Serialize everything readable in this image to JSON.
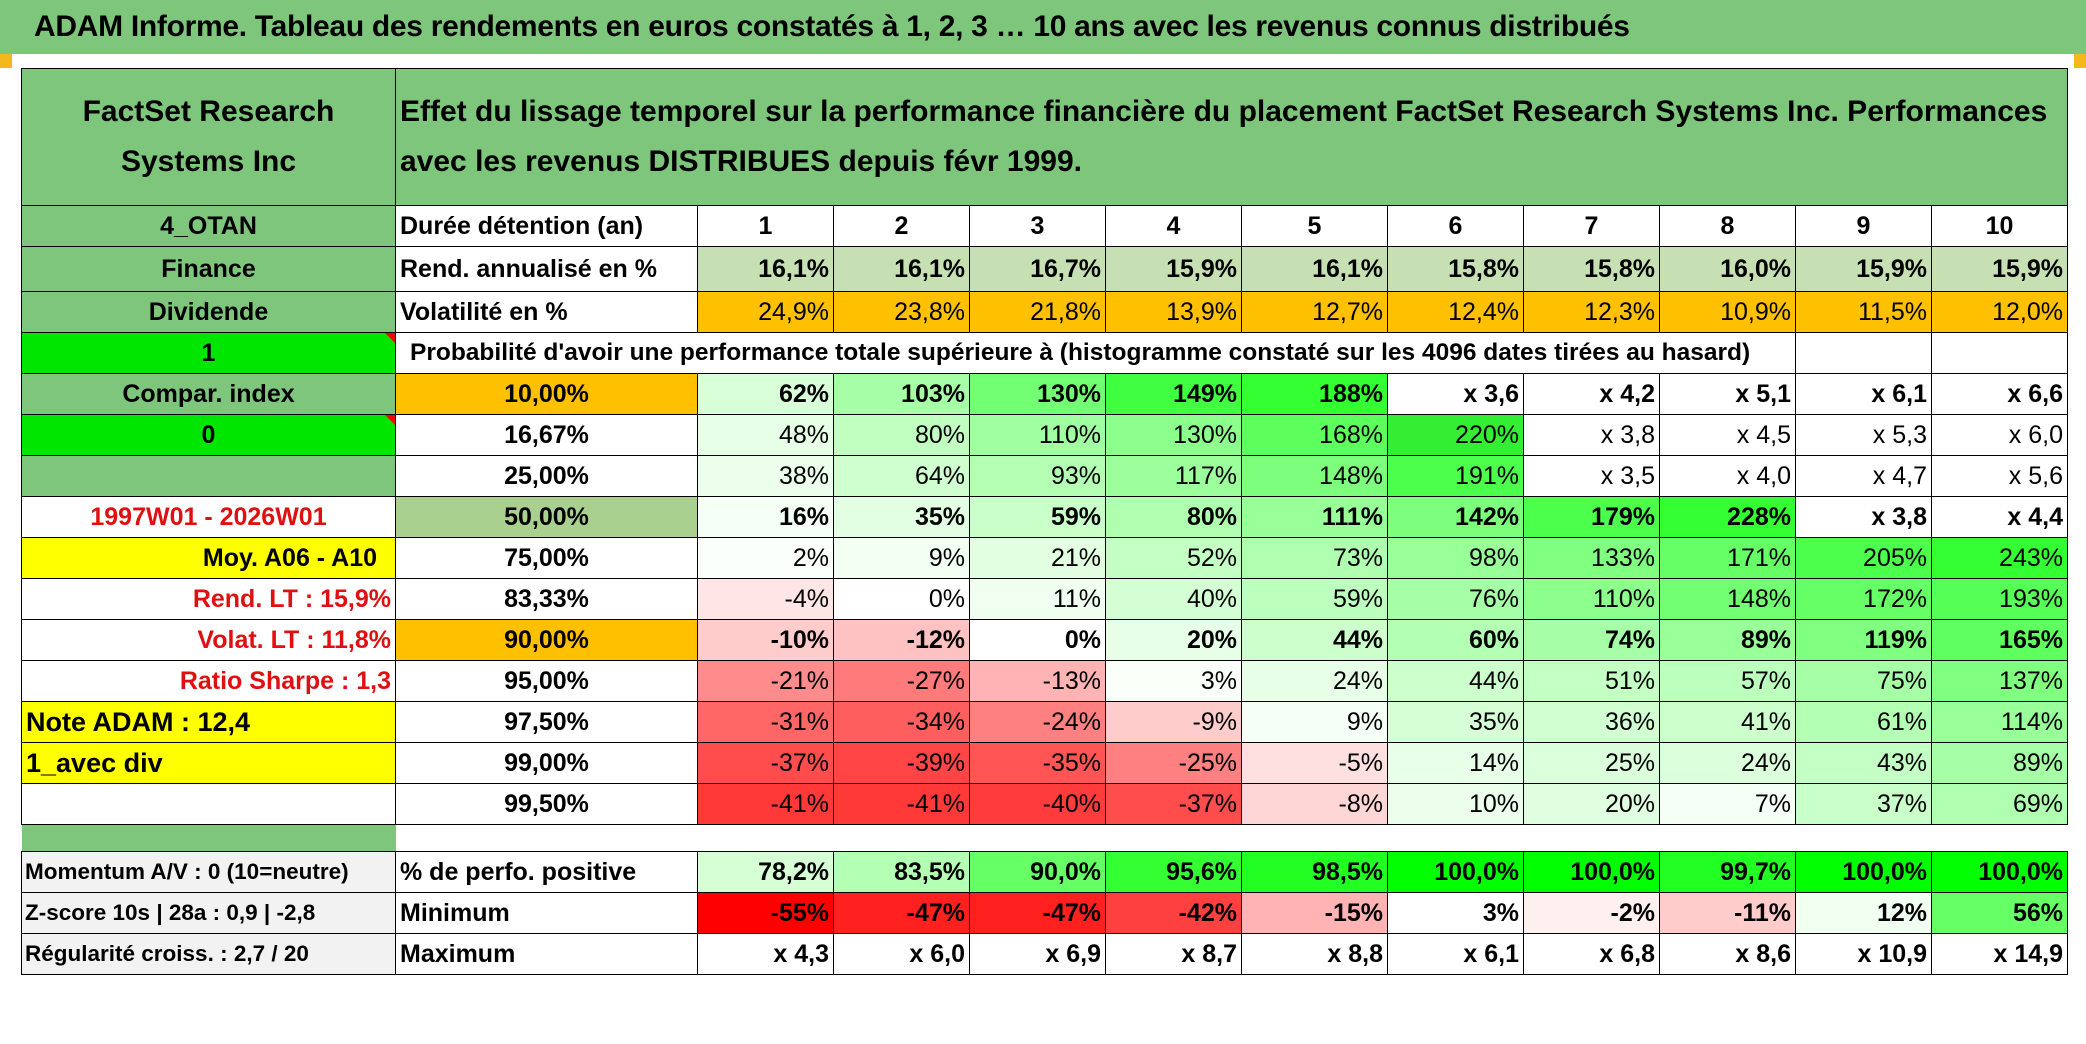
{
  "title": "ADAM Informe. Tableau des rendements en euros constatés à 1, 2, 3 … 10 ans avec les revenus connus distribués",
  "company": "FactSet Research Systems Inc",
  "header_desc": "Effet du lissage temporel sur la performance financière du placement FactSet Research Systems Inc. Performances avec les revenus DISTRIBUES depuis févr 1999.",
  "side": {
    "code": "4_OTAN",
    "sector": "Finance",
    "dividend": "Dividende",
    "one": "1",
    "compar": "Compar. index",
    "zero": "0",
    "period": "1997W01 - 2026W01",
    "moy": "Moy. A06 - A10",
    "rend_lt": "Rend. LT :    15,9%",
    "volat_lt": "Volat. LT :    11,8%",
    "sharpe": "Ratio Sharpe :    1,3",
    "note": "Note ADAM : 12,4",
    "avec_div": "1_avec div",
    "momentum": "Momentum A/V : 0 (10=neutre)",
    "zscore": "Z-score 10s | 28a : 0,9 | -2,8",
    "regularite": "Régularité croiss. : 2,7 / 20"
  },
  "duree_label": "Durée détention (an)",
  "years": [
    "1",
    "2",
    "3",
    "4",
    "5",
    "6",
    "7",
    "8",
    "9",
    "10"
  ],
  "rend_label": "Rend. annualisé en %",
  "rend": [
    "16,1%",
    "16,1%",
    "16,7%",
    "15,9%",
    "16,1%",
    "15,8%",
    "15,8%",
    "16,0%",
    "15,9%",
    "15,9%"
  ],
  "vol_label": "Volatilité en %",
  "vol": [
    "24,9%",
    "23,8%",
    "21,8%",
    "13,9%",
    "12,7%",
    "12,4%",
    "12,3%",
    "10,9%",
    "11,5%",
    "12,0%"
  ],
  "proba_label": "Probabilité d'avoir une performance totale supérieure à (histogramme constaté sur les 4096 dates tirées au hasard)",
  "prob_rows": [
    {
      "p": "10,00%",
      "v": [
        "62%",
        "103%",
        "130%",
        "149%",
        "188%",
        "x 3,6",
        "x 4,2",
        "x 5,1",
        "x 6,1",
        "x 6,6"
      ]
    },
    {
      "p": "16,67%",
      "v": [
        "48%",
        "80%",
        "110%",
        "130%",
        "168%",
        "220%",
        "x 3,8",
        "x 4,5",
        "x 5,3",
        "x 6,0"
      ]
    },
    {
      "p": "25,00%",
      "v": [
        "38%",
        "64%",
        "93%",
        "117%",
        "148%",
        "191%",
        "x 3,5",
        "x 4,0",
        "x 4,7",
        "x 5,6"
      ]
    },
    {
      "p": "50,00%",
      "v": [
        "16%",
        "35%",
        "59%",
        "80%",
        "111%",
        "142%",
        "179%",
        "228%",
        "x 3,8",
        "x 4,4"
      ]
    },
    {
      "p": "75,00%",
      "v": [
        "2%",
        "9%",
        "21%",
        "52%",
        "73%",
        "98%",
        "133%",
        "171%",
        "205%",
        "243%"
      ]
    },
    {
      "p": "83,33%",
      "v": [
        "-4%",
        "0%",
        "11%",
        "40%",
        "59%",
        "76%",
        "110%",
        "148%",
        "172%",
        "193%"
      ]
    },
    {
      "p": "90,00%",
      "v": [
        "-10%",
        "-12%",
        "0%",
        "20%",
        "44%",
        "60%",
        "74%",
        "89%",
        "119%",
        "165%"
      ]
    },
    {
      "p": "95,00%",
      "v": [
        "-21%",
        "-27%",
        "-13%",
        "3%",
        "24%",
        "44%",
        "51%",
        "57%",
        "75%",
        "137%"
      ]
    },
    {
      "p": "97,50%",
      "v": [
        "-31%",
        "-34%",
        "-24%",
        "-9%",
        "9%",
        "35%",
        "36%",
        "41%",
        "61%",
        "114%"
      ]
    },
    {
      "p": "99,00%",
      "v": [
        "-37%",
        "-39%",
        "-35%",
        "-25%",
        "-5%",
        "14%",
        "25%",
        "24%",
        "43%",
        "89%"
      ]
    },
    {
      "p": "99,50%",
      "v": [
        "-41%",
        "-41%",
        "-40%",
        "-37%",
        "-8%",
        "10%",
        "20%",
        "7%",
        "37%",
        "69%"
      ]
    }
  ],
  "pos_label": "% de perfo. positive",
  "pos": [
    "78,2%",
    "83,5%",
    "90,0%",
    "95,6%",
    "98,5%",
    "100,0%",
    "100,0%",
    "99,7%",
    "100,0%",
    "100,0%"
  ],
  "min_label": "Minimum",
  "min": [
    "-55%",
    "-47%",
    "-47%",
    "-42%",
    "-15%",
    "3%",
    "-2%",
    "-11%",
    "12%",
    "56%"
  ],
  "max_label": "Maximum",
  "max": [
    "x 4,3",
    "x 6,0",
    "x 6,9",
    "x 8,7",
    "x 8,8",
    "x 6,1",
    "x 6,8",
    "x 8,6",
    "x 10,9",
    "x 14,9"
  ],
  "colors": {
    "header_green": "#7dc67c",
    "bright_green": "#00e600",
    "orange": "#ffc000",
    "yellow": "#ffff00",
    "red_text": "#e01010",
    "rend_bg": "#c6e0b4",
    "p50_bg": "#a9d08e",
    "side_grey": "#f2f2f2",
    "row_cells": [
      [
        "#d9ffd9",
        "#a6ffa6",
        "#73ff73",
        "#40ff40",
        "#33ff33",
        "#ffffff",
        "#ffffff",
        "#ffffff",
        "#ffffff",
        "#ffffff"
      ],
      [
        "#e6ffe6",
        "#c0ffc0",
        "#a0ffa0",
        "#8cff8c",
        "#5dff5d",
        "#33ee33",
        "#ffffff",
        "#ffffff",
        "#ffffff",
        "#ffffff"
      ],
      [
        "#ecffec",
        "#cfffcf",
        "#b4ffb4",
        "#9cff9c",
        "#7dff7d",
        "#4dff4d",
        "#ffffff",
        "#ffffff",
        "#ffffff",
        "#ffffff"
      ],
      [
        "#f5fff5",
        "#e3ffe3",
        "#c9ffc9",
        "#b0ffb0",
        "#99ff99",
        "#7dff7d",
        "#4dff4d",
        "#33ff33",
        "#ffffff",
        "#ffffff"
      ],
      [
        "#fbfffb",
        "#f2fff2",
        "#e2ffe2",
        "#c4ffc4",
        "#b0ffb0",
        "#99ff99",
        "#80ff80",
        "#66ff66",
        "#4dff4d",
        "#33ff33"
      ],
      [
        "#ffe6e6",
        "#ffffff",
        "#f0fff0",
        "#d4ffd4",
        "#bdffbd",
        "#a6ffa6",
        "#8cff8c",
        "#73ff73",
        "#66ff66",
        "#55ff55"
      ],
      [
        "#ffcccc",
        "#ffc2c2",
        "#ffffff",
        "#e6ffe6",
        "#ccffcc",
        "#b3ffb3",
        "#a6ffa6",
        "#99ff99",
        "#80ff80",
        "#5eff5e"
      ],
      [
        "#ff8c8c",
        "#ff7a7a",
        "#ffb3b3",
        "#fafffa",
        "#e6ffe6",
        "#ccffcc",
        "#c4ffc4",
        "#bdffbd",
        "#a6ffa6",
        "#80ff80"
      ],
      [
        "#ff6666",
        "#ff5e5e",
        "#ff8080",
        "#ffcccc",
        "#f5fff5",
        "#d6ffd6",
        "#d1ffd1",
        "#ccffcc",
        "#b3ffb3",
        "#99ff99"
      ],
      [
        "#ff4d4d",
        "#ff4545",
        "#ff5555",
        "#ff8080",
        "#ffe0e0",
        "#e8ffe8",
        "#dbffdb",
        "#dcffdc",
        "#c4ffc4",
        "#a6ffa6"
      ],
      [
        "#ff3838",
        "#ff3838",
        "#ff3c3c",
        "#ff4d4d",
        "#ffd6d6",
        "#ecffec",
        "#e0ffe0",
        "#f5fff5",
        "#c9ffc9",
        "#b0ffb0"
      ]
    ],
    "pos_cells": [
      "#d6ffd6",
      "#b3ffb3",
      "#66ff66",
      "#33ff33",
      "#22ff22",
      "#00ff00",
      "#00ff00",
      "#22ff22",
      "#00ff00",
      "#00ff00"
    ],
    "min_cells": [
      "#ff0000",
      "#ff2020",
      "#ff2020",
      "#ff4040",
      "#ffb3b3",
      "#ffffff",
      "#fff0f0",
      "#ffcccc",
      "#f0fff0",
      "#66ff66"
    ]
  }
}
